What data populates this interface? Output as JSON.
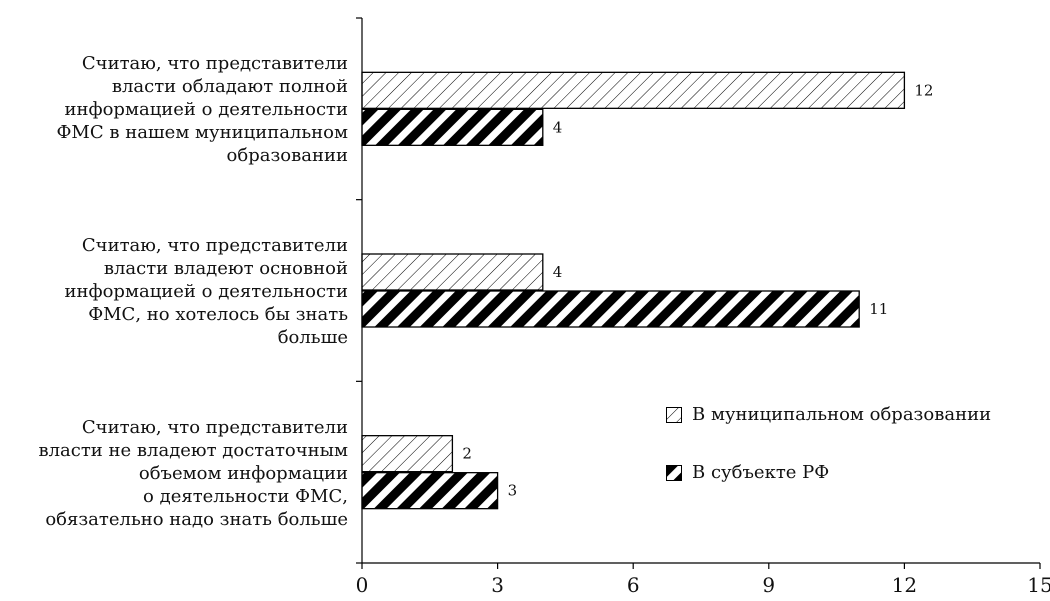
{
  "chart_data": {
    "type": "bar",
    "orientation": "horizontal",
    "categories": [
      "Считаю, что представители\nвласти обладают полной\nинформацией о деятельности\nФМС в нашем муниципальном\nобразовании",
      "Считаю, что представители\nвласти владеют основной\nинформацией о деятельности\nФМС, но хотелось бы знать\nбольше",
      "Считаю, что представители\nвласти не владеют достаточным\nобъемом информации\nо деятельности ФМС,\nобязательно надо знать больше"
    ],
    "series": [
      {
        "name": "В муниципальном образовании",
        "values": [
          12,
          4,
          2
        ],
        "pattern": "thin-hatch",
        "color": "#000000"
      },
      {
        "name": "В субъекте РФ",
        "values": [
          4,
          11,
          3
        ],
        "pattern": "thick-hatch",
        "color": "#000000"
      }
    ],
    "xlim": [
      0,
      15
    ],
    "xticks": [
      "0",
      "3",
      "6",
      "9",
      "12",
      "15"
    ],
    "data_labels": true,
    "grid": false,
    "legend_position": "right"
  }
}
